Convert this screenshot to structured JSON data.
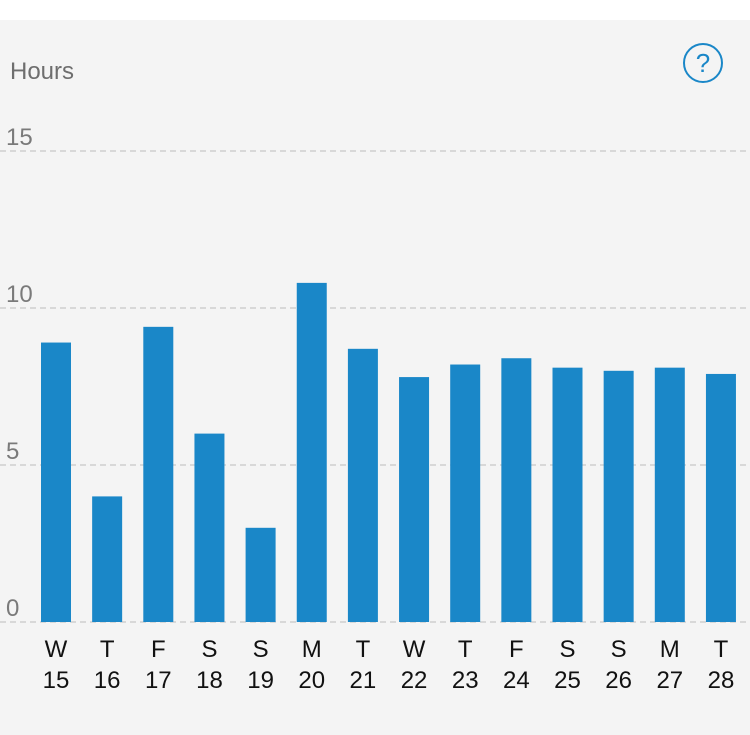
{
  "header": {
    "unit_label": "Hours",
    "help_label": "?"
  },
  "colors": {
    "bar": "#1a87c8",
    "background": "#f4f4f4",
    "gridline": "#cfcfcf"
  },
  "icons": {
    "help": "question-mark-circle-icon"
  },
  "chart_data": {
    "type": "bar",
    "title": "",
    "xlabel": "",
    "ylabel": "Hours",
    "ylim": [
      0,
      15
    ],
    "yticks": [
      0,
      5,
      10,
      15
    ],
    "grid": true,
    "categories": [
      {
        "day": "W",
        "date": "15"
      },
      {
        "day": "T",
        "date": "16"
      },
      {
        "day": "F",
        "date": "17"
      },
      {
        "day": "S",
        "date": "18"
      },
      {
        "day": "S",
        "date": "19"
      },
      {
        "day": "M",
        "date": "20"
      },
      {
        "day": "T",
        "date": "21"
      },
      {
        "day": "W",
        "date": "22"
      },
      {
        "day": "T",
        "date": "23"
      },
      {
        "day": "F",
        "date": "24"
      },
      {
        "day": "S",
        "date": "25"
      },
      {
        "day": "S",
        "date": "26"
      },
      {
        "day": "M",
        "date": "27"
      },
      {
        "day": "T",
        "date": "28"
      }
    ],
    "values": [
      8.9,
      4.0,
      9.4,
      6.0,
      3.0,
      10.8,
      8.7,
      7.8,
      8.2,
      8.4,
      8.1,
      8.0,
      8.1,
      7.9
    ]
  }
}
